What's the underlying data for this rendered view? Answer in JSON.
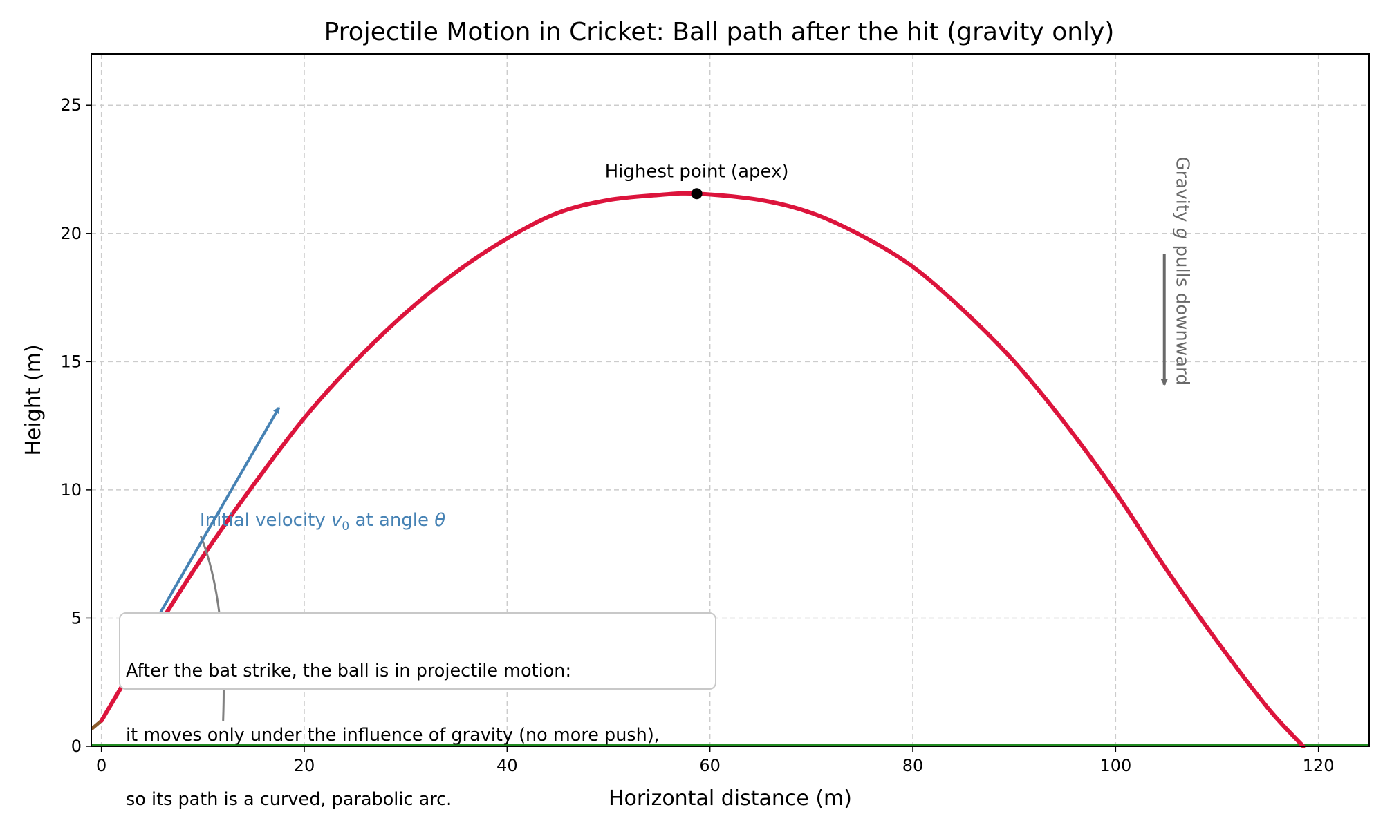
{
  "chart_data": {
    "type": "line",
    "title": "Projectile Motion in Cricket: Ball path after the hit (gravity only)",
    "xlabel": "Horizontal distance (m)",
    "ylabel": "Height (m)",
    "xlim": [
      -1,
      125
    ],
    "ylim": [
      0,
      27
    ],
    "x_ticks": [
      0,
      20,
      40,
      60,
      80,
      100,
      120
    ],
    "y_ticks": [
      0,
      5,
      10,
      15,
      20,
      25
    ],
    "grid": true,
    "series": [
      {
        "color": "#dc143c",
        "x": [
          0,
          5,
          10,
          15,
          20,
          25,
          30,
          35,
          40,
          45,
          50,
          55,
          58.7,
          65,
          70,
          75,
          80,
          85,
          90,
          95,
          100,
          105,
          110,
          115,
          118.5
        ],
        "y": [
          1.0,
          4.3,
          7.4,
          10.2,
          12.8,
          15.0,
          16.9,
          18.5,
          19.8,
          20.8,
          21.3,
          21.5,
          21.55,
          21.3,
          20.8,
          19.9,
          18.7,
          17.0,
          15.0,
          12.6,
          9.9,
          6.9,
          4.1,
          1.5,
          0.0
        ]
      }
    ],
    "apex": {
      "x": 58.7,
      "y": 21.55,
      "label": "Highest point (apex)"
    },
    "velocity_arrow": {
      "from": [
        5.5,
        5.0
      ],
      "to": [
        17.5,
        13.2
      ],
      "color": "#4682b4"
    },
    "velocity_label": {
      "x": 9.7,
      "y": 8.6,
      "prefix": "Initial velocity ",
      "v": "v",
      "sub": "0",
      "mid": " at angle ",
      "theta": "θ"
    },
    "gravity": {
      "label": "Gravity ",
      "g": "g",
      "suffix": " pulls downward",
      "color": "#696969",
      "arrow_x": 104.8,
      "arrow_from": 19.2,
      "arrow_to": 14.1,
      "label_x": 106.0,
      "label_y": 23.0
    },
    "callout_line": {
      "from": [
        12.0,
        1.0
      ],
      "to": [
        9.8,
        8.2
      ],
      "color": "#808080"
    },
    "ground": {
      "y": 0.0,
      "color": "#228b22"
    },
    "bat": {
      "from": [
        -0.9,
        0.7
      ],
      "to": [
        0.0,
        1.0
      ],
      "color": "#8b5a2b"
    },
    "note": {
      "lines": [
        "After the bat strike, the ball is in projectile motion:",
        "it moves only under the influence of gravity (no more push),",
        "so its path is a curved, parabolic arc."
      ]
    }
  }
}
